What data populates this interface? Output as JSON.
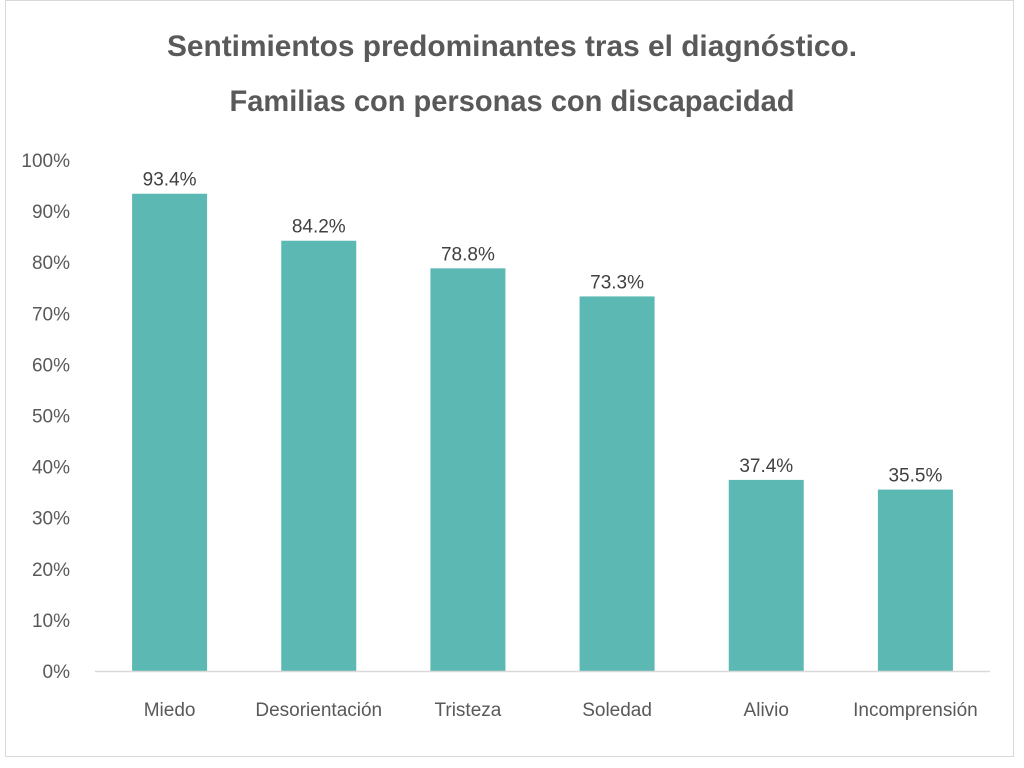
{
  "chart_data": {
    "type": "bar",
    "title": [
      "Sentimientos predominantes tras el diagnóstico.",
      "Familias con personas con discapacidad"
    ],
    "categories": [
      "Miedo",
      "Desorientación",
      "Tristeza",
      "Soledad",
      "Alivio",
      "Incomprensión"
    ],
    "values": [
      93.4,
      84.2,
      78.8,
      73.3,
      37.4,
      35.5
    ],
    "data_labels": [
      "93.4%",
      "84.2%",
      "78.8%",
      "73.3%",
      "37.4%",
      "35.5%"
    ],
    "ylim": [
      0,
      100
    ],
    "yticks": [
      "0%",
      "10%",
      "20%",
      "30%",
      "40%",
      "50%",
      "60%",
      "70%",
      "80%",
      "90%",
      "100%"
    ],
    "xlabel": "",
    "ylabel": "",
    "grid": false,
    "legend": "none",
    "bar_color": "#5BB8B2"
  }
}
